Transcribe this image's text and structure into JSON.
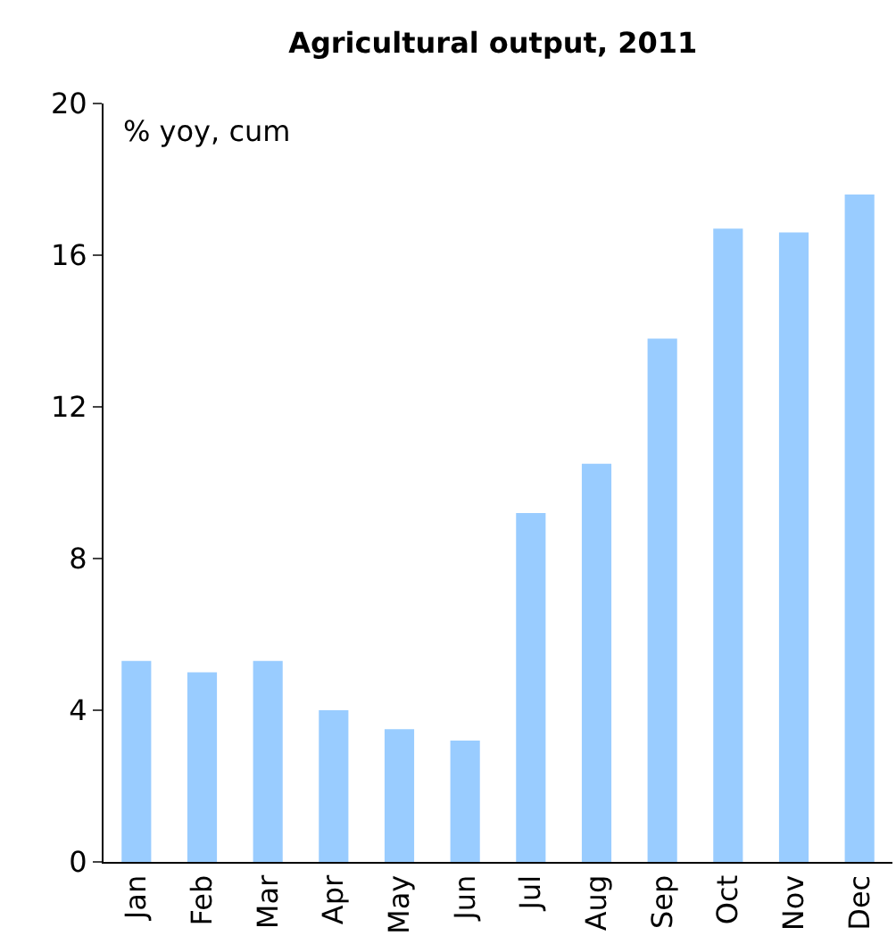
{
  "chart_data": {
    "type": "bar",
    "title": "Agricultural output, 2011",
    "ylabel": "% yoy, cum",
    "categories": [
      "Jan",
      "Feb",
      "Mar",
      "Apr",
      "May",
      "Jun",
      "Jul",
      "Aug",
      "Sep",
      "Oct",
      "Nov",
      "Dec"
    ],
    "values": [
      5.3,
      5.0,
      5.3,
      4.0,
      3.5,
      3.2,
      9.2,
      10.5,
      13.8,
      16.7,
      16.6,
      17.6
    ],
    "color": "#99ccff",
    "ylim": [
      0,
      20
    ],
    "yticks": [
      0,
      4,
      8,
      12,
      16,
      20
    ],
    "grid": false,
    "legend": false
  }
}
